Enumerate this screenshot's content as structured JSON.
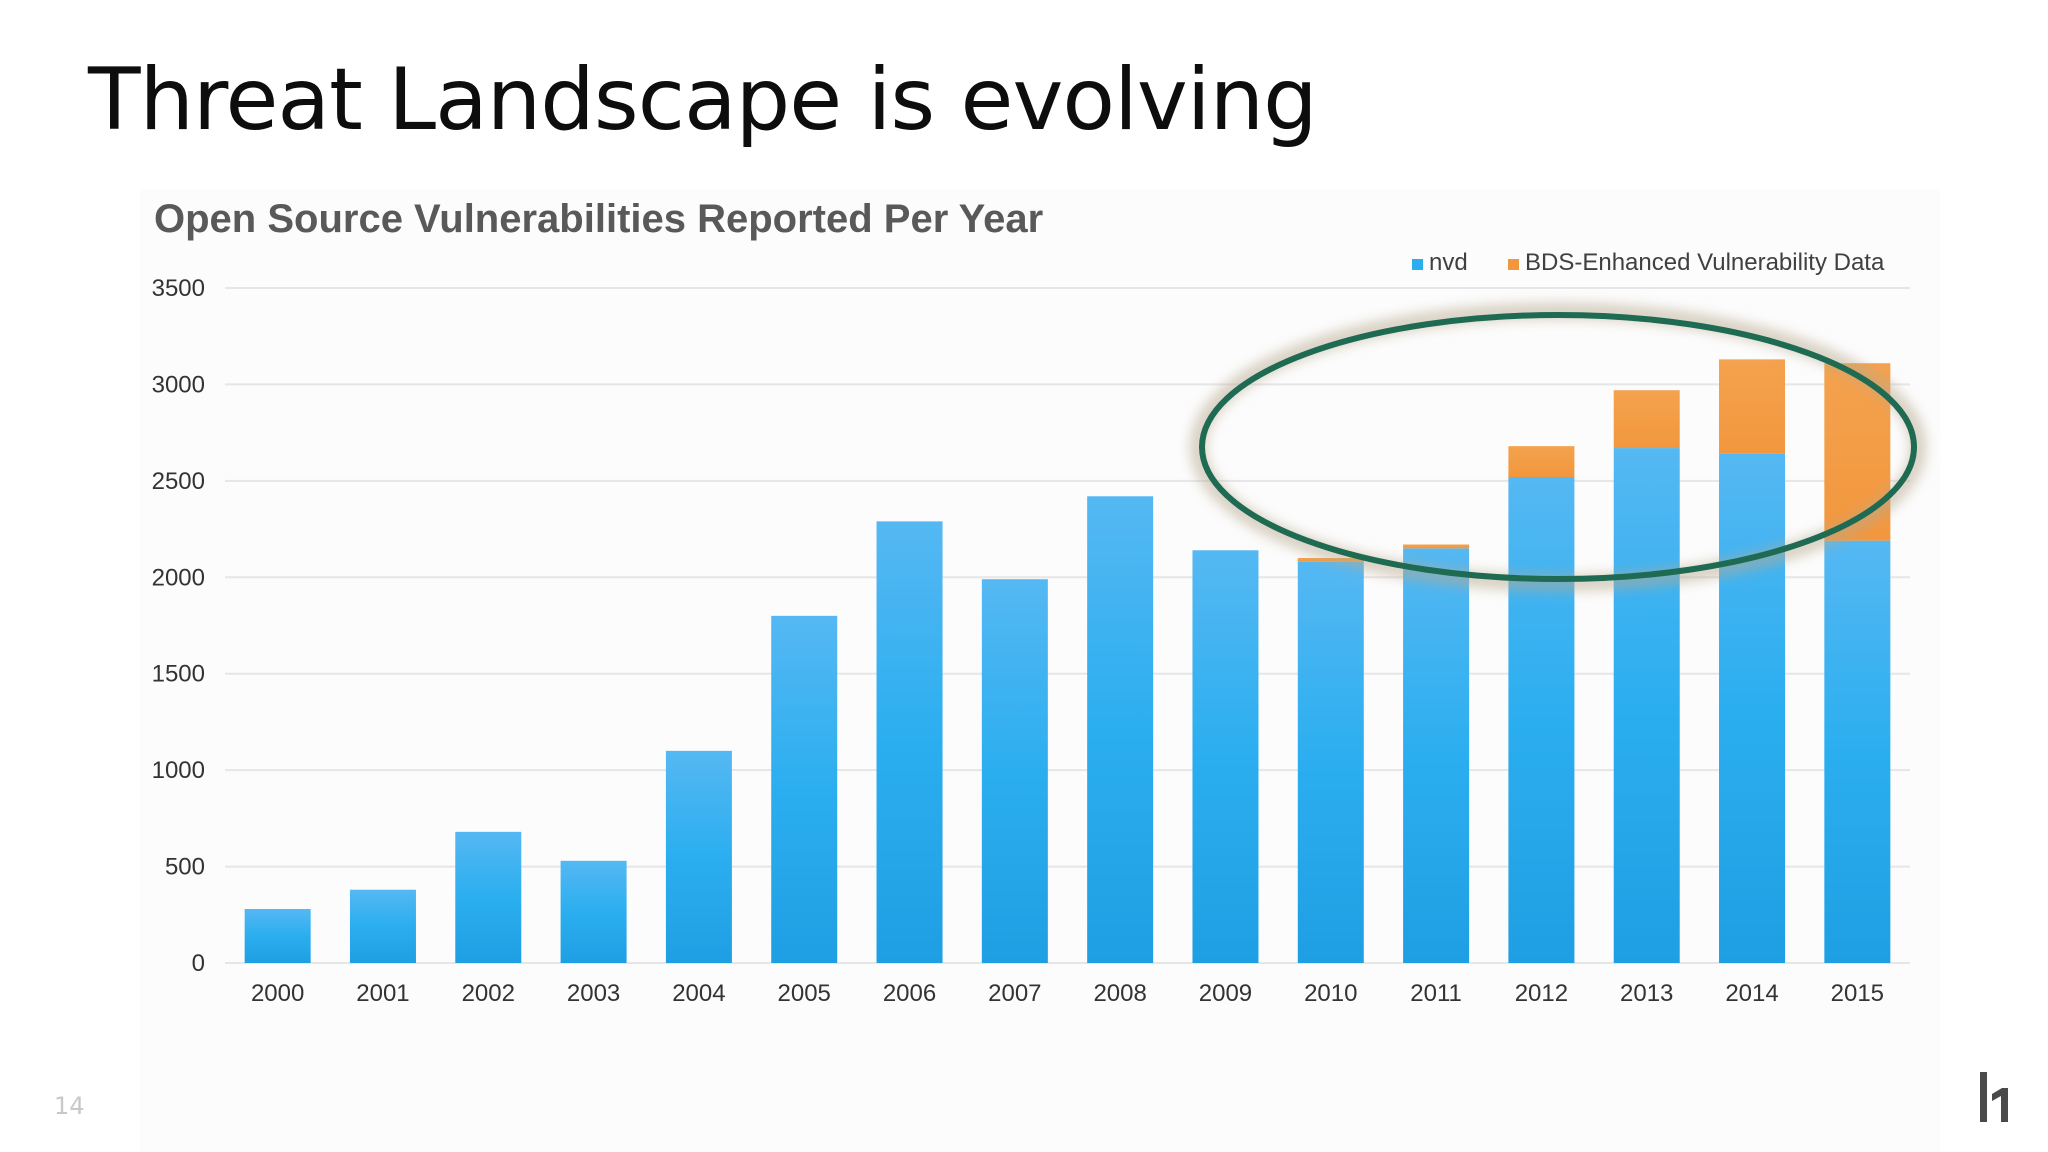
{
  "slide": {
    "title": "Threat Landscape is evolving",
    "page_number": "14",
    "logo_text": "h1"
  },
  "colors": {
    "nvd": "#2baef0",
    "bds": "#f2973e",
    "ellipse": "#1f6a52",
    "grid": "#e6e6e6"
  },
  "annotation": {
    "shape": "ellipse",
    "highlights_categories": [
      "2012",
      "2013",
      "2014",
      "2015"
    ]
  },
  "chart_data": {
    "type": "bar",
    "stacked": true,
    "title": "Open Source Vulnerabilities Reported Per Year",
    "xlabel": "",
    "ylabel": "",
    "ylim": [
      0,
      3500
    ],
    "yticks": [
      0,
      500,
      1000,
      1500,
      2000,
      2500,
      3000,
      3500
    ],
    "grid": true,
    "legend_position": "top-right",
    "categories": [
      "2000",
      "2001",
      "2002",
      "2003",
      "2004",
      "2005",
      "2006",
      "2007",
      "2008",
      "2009",
      "2010",
      "2011",
      "2012",
      "2013",
      "2014",
      "2015"
    ],
    "series": [
      {
        "name": "nvd",
        "values": [
          280,
          380,
          680,
          530,
          1100,
          1800,
          2290,
          1990,
          2420,
          2140,
          2080,
          2150,
          2520,
          2670,
          2640,
          2190
        ]
      },
      {
        "name": "BDS-Enhanced Vulnerability Data",
        "values": [
          0,
          0,
          0,
          0,
          0,
          0,
          0,
          0,
          0,
          0,
          20,
          20,
          160,
          300,
          490,
          920
        ]
      }
    ]
  }
}
